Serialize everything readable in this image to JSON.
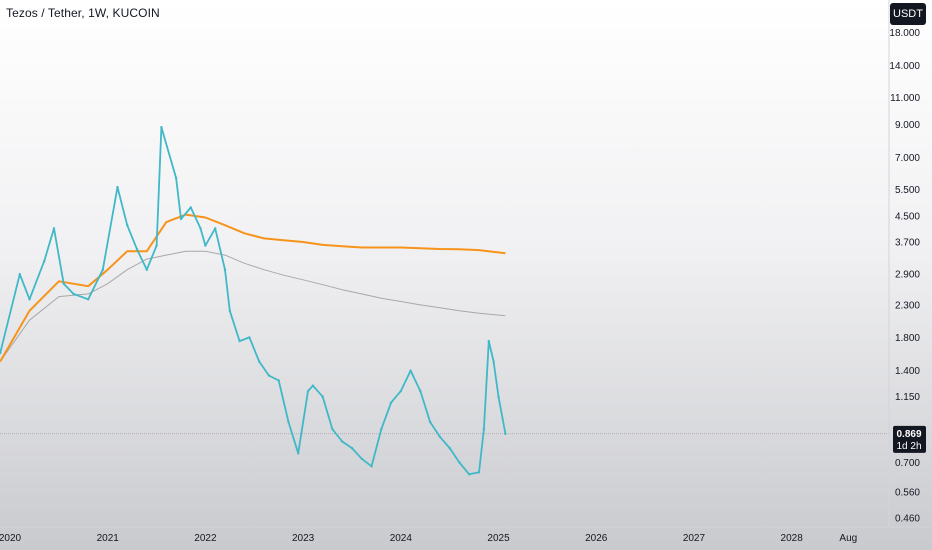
{
  "header": {
    "title": "Tezos / Tether, 1W, KUCOIN",
    "currency": "USDT"
  },
  "price_badge": {
    "last_price": "0.869",
    "countdown": "1d 2h",
    "last_value": 0.869
  },
  "colors": {
    "candle": "#3fb8c8",
    "candle_down": "#6b6b6b",
    "ema_slow": "#f7931a",
    "ema_fast": "#a8a8a8",
    "axis_text": "#131722",
    "badge_bg": "#131722"
  },
  "chart_data": {
    "type": "line",
    "scale": "log",
    "xlabel": "",
    "ylabel": "",
    "ylim": [
      0.43,
      23.0
    ],
    "xlim": [
      2020.0,
      2028.72
    ],
    "x_ticks": [
      {
        "label": "2020",
        "value": 2020.0
      },
      {
        "label": "2021",
        "value": 2021.0
      },
      {
        "label": "2022",
        "value": 2022.0
      },
      {
        "label": "2023",
        "value": 2023.0
      },
      {
        "label": "2024",
        "value": 2024.0
      },
      {
        "label": "2025",
        "value": 2025.0
      },
      {
        "label": "2026",
        "value": 2026.0
      },
      {
        "label": "2027",
        "value": 2027.0
      },
      {
        "label": "2028",
        "value": 2028.0
      },
      {
        "label": "Aug",
        "value": 2028.58
      }
    ],
    "y_ticks": [
      {
        "label": "18.000",
        "value": 18.0
      },
      {
        "label": "14.000",
        "value": 14.0
      },
      {
        "label": "11.000",
        "value": 11.0
      },
      {
        "label": "9.000",
        "value": 9.0
      },
      {
        "label": "7.000",
        "value": 7.0
      },
      {
        "label": "5.500",
        "value": 5.5
      },
      {
        "label": "4.500",
        "value": 4.5
      },
      {
        "label": "3.700",
        "value": 3.7
      },
      {
        "label": "2.900",
        "value": 2.9
      },
      {
        "label": "2.300",
        "value": 2.3
      },
      {
        "label": "1.800",
        "value": 1.8
      },
      {
        "label": "1.400",
        "value": 1.4
      },
      {
        "label": "1.150",
        "value": 1.15
      },
      {
        "label": "0.700",
        "value": 0.7
      },
      {
        "label": "0.560",
        "value": 0.56
      },
      {
        "label": "0.460",
        "value": 0.46
      }
    ],
    "series": [
      {
        "x": [
          2019.9,
          2020.1,
          2020.2,
          2020.35,
          2020.45,
          2020.55,
          2020.65,
          2020.8,
          2020.95,
          2021.1,
          2021.2,
          2021.3,
          2021.4,
          2021.5,
          2021.55,
          2021.7,
          2021.75,
          2021.85,
          2021.95,
          2022.0,
          2022.1,
          2022.2,
          2022.25,
          2022.35,
          2022.45,
          2022.55,
          2022.65,
          2022.75,
          2022.85,
          2022.95,
          2023.05,
          2023.1,
          2023.2,
          2023.3,
          2023.4,
          2023.5,
          2023.6,
          2023.7,
          2023.8,
          2023.9,
          2024.0,
          2024.1,
          2024.2,
          2024.3,
          2024.4,
          2024.5,
          2024.6,
          2024.7,
          2024.8,
          2024.85,
          2024.9,
          2024.95,
          2025.0,
          2025.07
        ],
        "values": [
          1.6,
          2.9,
          2.4,
          3.2,
          4.1,
          2.7,
          2.5,
          2.4,
          3.0,
          5.6,
          4.2,
          3.5,
          3.0,
          3.6,
          8.8,
          6.0,
          4.4,
          4.8,
          4.1,
          3.6,
          4.1,
          3.0,
          2.2,
          1.75,
          1.8,
          1.5,
          1.35,
          1.3,
          0.95,
          0.75,
          1.2,
          1.25,
          1.15,
          0.9,
          0.82,
          0.78,
          0.72,
          0.68,
          0.9,
          1.1,
          1.2,
          1.4,
          1.2,
          0.95,
          0.85,
          0.78,
          0.7,
          0.64,
          0.65,
          0.9,
          1.75,
          1.5,
          1.15,
          0.869
        ]
      },
      {
        "x": [
          2019.9,
          2020.2,
          2020.5,
          2020.8,
          2021.0,
          2021.2,
          2021.4,
          2021.6,
          2021.8,
          2022.0,
          2022.2,
          2022.4,
          2022.6,
          2022.8,
          2023.0,
          2023.2,
          2023.4,
          2023.6,
          2023.8,
          2024.0,
          2024.2,
          2024.4,
          2024.6,
          2024.8,
          2025.07
        ],
        "values": [
          1.5,
          2.2,
          2.75,
          2.65,
          3.0,
          3.45,
          3.45,
          4.3,
          4.55,
          4.45,
          4.2,
          3.95,
          3.8,
          3.75,
          3.7,
          3.62,
          3.58,
          3.55,
          3.55,
          3.55,
          3.53,
          3.51,
          3.5,
          3.48,
          3.4
        ]
      },
      {
        "x": [
          2019.9,
          2020.2,
          2020.5,
          2020.8,
          2021.0,
          2021.2,
          2021.4,
          2021.6,
          2021.8,
          2022.0,
          2022.2,
          2022.4,
          2022.6,
          2022.8,
          2023.0,
          2023.2,
          2023.4,
          2023.6,
          2023.8,
          2024.0,
          2024.2,
          2024.4,
          2024.6,
          2024.8,
          2025.07
        ],
        "values": [
          1.5,
          2.05,
          2.45,
          2.5,
          2.7,
          3.0,
          3.25,
          3.35,
          3.45,
          3.45,
          3.35,
          3.15,
          3.0,
          2.88,
          2.78,
          2.68,
          2.58,
          2.5,
          2.42,
          2.36,
          2.3,
          2.25,
          2.2,
          2.16,
          2.12
        ]
      }
    ]
  }
}
